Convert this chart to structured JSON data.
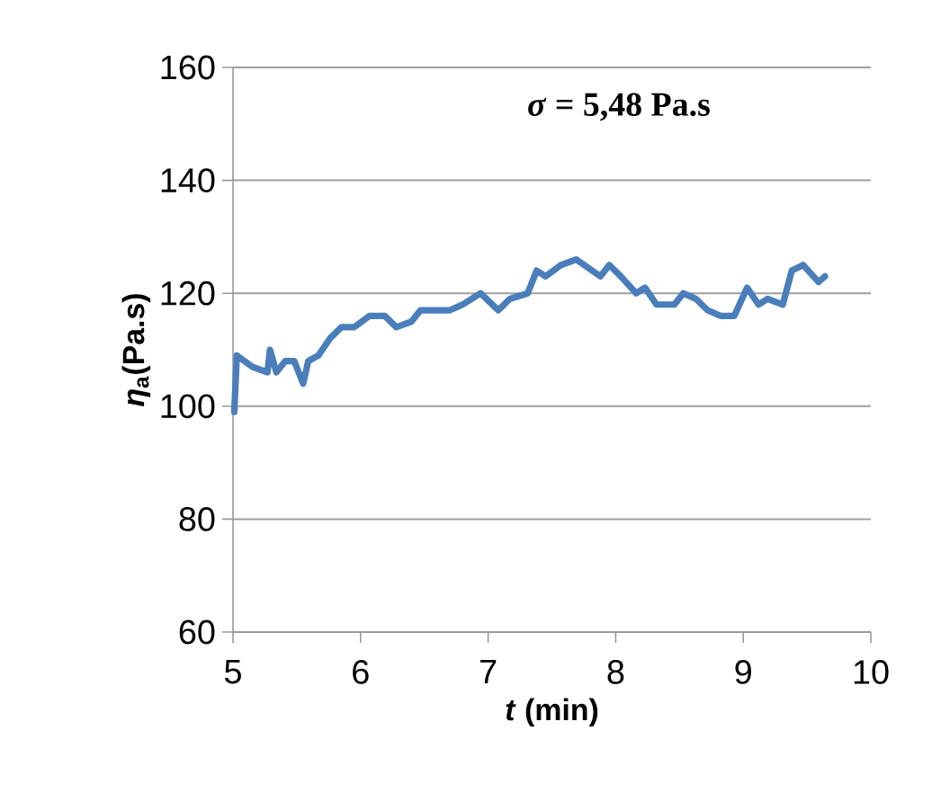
{
  "chart_data": {
    "type": "line",
    "xlabel": "*t* (min)",
    "ylabel": "*η*$_{a}$(Pa.s)",
    "annotations": [
      "*σ* = 5,48 Pa.s"
    ],
    "xlim": [
      5,
      10
    ],
    "ylim": [
      60,
      160
    ],
    "xticks": [
      5,
      6,
      7,
      8,
      9,
      10
    ],
    "yticks": [
      60,
      80,
      100,
      120,
      140,
      160
    ],
    "grid": "y",
    "series": [
      {
        "color": "#4a7ebb",
        "x": [
          5.01,
          5.03,
          5.15,
          5.27,
          5.29,
          5.34,
          5.41,
          5.48,
          5.55,
          5.59,
          5.67,
          5.76,
          5.85,
          5.95,
          6.07,
          6.19,
          6.28,
          6.4,
          6.47,
          6.56,
          6.7,
          6.8,
          6.94,
          7.08,
          7.17,
          7.31,
          7.38,
          7.45,
          7.57,
          7.69,
          7.88,
          7.95,
          8.04,
          8.16,
          8.23,
          8.32,
          8.46,
          8.53,
          8.63,
          8.72,
          8.82,
          8.93,
          9.03,
          9.12,
          9.19,
          9.31,
          9.38,
          9.47,
          9.59,
          9.64
        ],
        "values": [
          99,
          109,
          107,
          106,
          110,
          106,
          108,
          108,
          104,
          108,
          109,
          112,
          114,
          114,
          116,
          116,
          114,
          115,
          117,
          117,
          117,
          118,
          120,
          117,
          119,
          120,
          124,
          123,
          125,
          126,
          123,
          125,
          123,
          120,
          121,
          118,
          118,
          120,
          119,
          117,
          116,
          116,
          121,
          118,
          119,
          118,
          124,
          125,
          122,
          123
        ]
      }
    ]
  }
}
